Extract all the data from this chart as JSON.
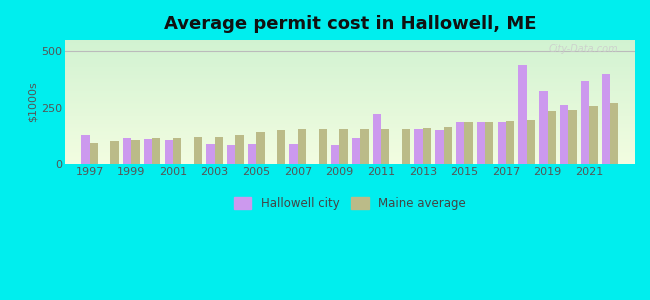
{
  "title": "Average permit cost in Hallowell, ME",
  "ylabel": "$1000s",
  "xlabel": "",
  "background_color": "#00EEEE",
  "hallowell_color": "#cc99ee",
  "maine_color": "#bbbb88",
  "years": [
    1997,
    1998,
    1999,
    2000,
    2001,
    2002,
    2003,
    2004,
    2005,
    2006,
    2007,
    2008,
    2009,
    2010,
    2011,
    2012,
    2013,
    2014,
    2015,
    2016,
    2017,
    2018,
    2019,
    2020,
    2021,
    2022
  ],
  "hallowell": [
    130,
    0,
    115,
    110,
    105,
    0,
    90,
    85,
    90,
    0,
    90,
    0,
    85,
    115,
    220,
    0,
    155,
    150,
    185,
    185,
    185,
    440,
    325,
    260,
    370,
    400
  ],
  "maine": [
    95,
    100,
    105,
    115,
    115,
    120,
    120,
    130,
    140,
    150,
    155,
    155,
    155,
    155,
    155,
    155,
    160,
    165,
    185,
    185,
    190,
    195,
    235,
    240,
    255,
    270
  ],
  "ylim": [
    0,
    550
  ],
  "yticks": [
    0,
    250,
    500
  ],
  "legend_hallowell": "Hallowell city",
  "legend_maine": "Maine average",
  "title_fontsize": 13,
  "axis_label_fontsize": 8,
  "tick_fontsize": 8,
  "watermark": "City-Data.com"
}
